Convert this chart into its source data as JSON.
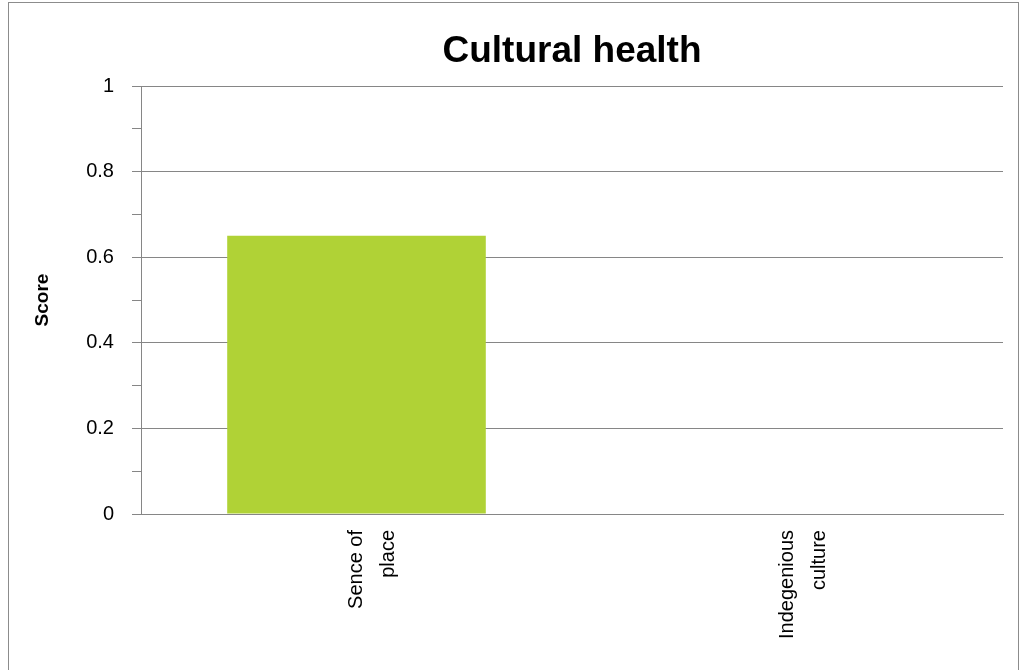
{
  "chart_data": {
    "type": "bar",
    "title": "Cultural health",
    "ylabel": "Score",
    "categories": [
      "Sence of place",
      "Indegenious culture"
    ],
    "values": [
      0.65,
      null
    ],
    "color": "#b0d236",
    "ylim": [
      0,
      1
    ],
    "yticks": [
      0,
      {
        "value": 0.1,
        "label": null
      },
      0.2,
      {
        "value": 0.3,
        "label": null
      },
      0.4,
      {
        "value": 0.5,
        "label": null
      },
      0.6,
      {
        "value": 0.7,
        "label": null
      },
      0.8,
      {
        "value": 0.9,
        "label": null
      },
      1
    ],
    "grid": "y"
  }
}
